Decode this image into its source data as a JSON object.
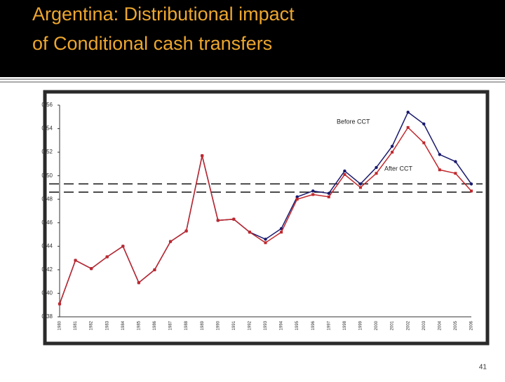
{
  "slide": {
    "title_lines": [
      "Argentina: Distributional impact",
      "of Conditional cash transfers"
    ],
    "page_number": "41"
  },
  "chart_data": {
    "type": "line",
    "categories": [
      "1980",
      "1981",
      "1982",
      "1983",
      "1984",
      "1985",
      "1986",
      "1987",
      "1988",
      "1989",
      "1990",
      "1991",
      "1992",
      "1993",
      "1994",
      "1995",
      "1996",
      "1997",
      "1998",
      "1999",
      "2000",
      "2001",
      "2002",
      "2003",
      "2004",
      "2005",
      "2006"
    ],
    "series": [
      {
        "name": "Before CCT",
        "color": "#1a1a6e",
        "values": [
          0.391,
          0.428,
          0.421,
          0.431,
          0.44,
          0.409,
          0.42,
          0.444,
          0.453,
          0.517,
          0.462,
          0.463,
          0.452,
          0.446,
          0.455,
          0.482,
          0.487,
          0.485,
          0.504,
          0.493,
          0.507,
          0.525,
          0.554,
          0.544,
          0.518,
          0.512,
          0.493
        ]
      },
      {
        "name": "After CCT",
        "color": "#c0282d",
        "values": [
          0.391,
          0.428,
          0.421,
          0.431,
          0.44,
          0.409,
          0.42,
          0.444,
          0.453,
          0.517,
          0.462,
          0.463,
          0.452,
          0.443,
          0.452,
          0.48,
          0.484,
          0.482,
          0.501,
          0.49,
          0.502,
          0.52,
          0.541,
          0.528,
          0.505,
          0.502,
          0.487
        ]
      }
    ],
    "reference_lines": [
      0.493,
      0.486
    ],
    "ylim": [
      0.38,
      0.56
    ],
    "yticks": [
      0.56,
      0.54,
      0.52,
      {
        "value": 0.5,
        "label": "0.50"
      },
      0.48,
      0.46,
      0.44,
      0.42,
      {
        "value": 0.4,
        "label": "0.40"
      },
      0.38
    ]
  }
}
